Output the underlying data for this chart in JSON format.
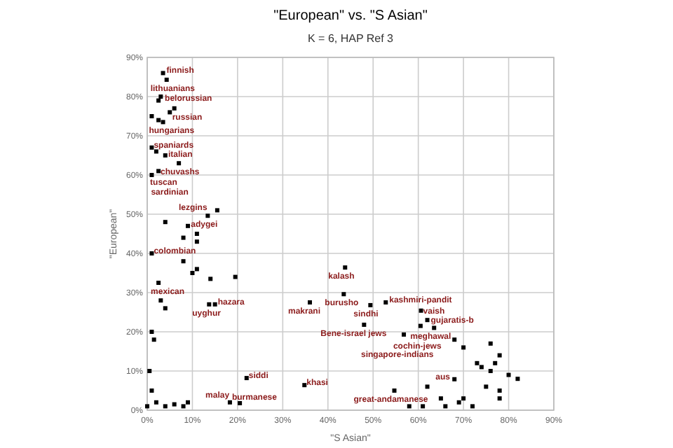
{
  "chart_data": {
    "type": "scatter",
    "title": "\"European\" vs. \"S Asian\"",
    "subtitle": "K = 6, HAP Ref 3",
    "xlabel": "\"S Asian\"",
    "ylabel": "\"European\"",
    "xlim": [
      0,
      90
    ],
    "ylim": [
      0,
      90
    ],
    "xticks": [
      {
        "value": 0,
        "label": "0%"
      },
      {
        "value": 10,
        "label": "10%"
      },
      {
        "value": 20,
        "label": "20%"
      },
      {
        "value": 30,
        "label": "30%"
      },
      {
        "value": 40,
        "label": "40%"
      },
      {
        "value": 50,
        "label": "50%"
      },
      {
        "value": 60,
        "label": "60%"
      },
      {
        "value": 70,
        "label": "70%"
      },
      {
        "value": 80,
        "label": "80%"
      },
      {
        "value": 90,
        "label": "90%"
      }
    ],
    "yticks": [
      {
        "value": 0,
        "label": "0%"
      },
      {
        "value": 10,
        "label": "10%"
      },
      {
        "value": 20,
        "label": "20%"
      },
      {
        "value": 30,
        "label": "30%"
      },
      {
        "value": 40,
        "label": "40%"
      },
      {
        "value": 50,
        "label": "50%"
      },
      {
        "value": 60,
        "label": "60%"
      },
      {
        "value": 70,
        "label": "70%"
      },
      {
        "value": 80,
        "label": "80%"
      },
      {
        "value": 90,
        "label": "90%"
      }
    ],
    "grid": true,
    "marker": "square",
    "series": [
      {
        "color": "#000000",
        "x": [
          3.5,
          4.3,
          2.5,
          6,
          1,
          1,
          2,
          7,
          2.5,
          1,
          15.5,
          13.4,
          1,
          2.5,
          13.7,
          15,
          22,
          18.3,
          20.5,
          34.8,
          43.8,
          43.5,
          36,
          49.4,
          52.8,
          48,
          60.6,
          62,
          63.5,
          60.5,
          56.8,
          68,
          54.7,
          3,
          5,
          2.5,
          3.5,
          4,
          11,
          11,
          9,
          4,
          8,
          8,
          11,
          14,
          19.5,
          10,
          3,
          4,
          1,
          1.5,
          0.5,
          1,
          2,
          4,
          6,
          8,
          9,
          0,
          62,
          65,
          70,
          72,
          75,
          76,
          77,
          78,
          80,
          78,
          73,
          70,
          68,
          74,
          58,
          61,
          66,
          69,
          78,
          82,
          76
        ],
        "values": [
          86,
          84.3,
          79,
          77,
          75,
          67,
          66,
          63,
          61,
          60,
          51,
          49.6,
          40,
          32.5,
          27,
          27,
          8.2,
          2,
          1.8,
          6.4,
          36.4,
          29.6,
          27.5,
          26.8,
          27.5,
          21.8,
          25.4,
          23,
          21,
          21.5,
          19.3,
          7.9,
          5,
          80,
          76,
          74,
          73.5,
          65,
          45,
          43,
          47,
          48,
          44,
          38,
          36,
          33.5,
          34,
          35,
          28,
          26,
          20,
          18,
          10,
          5,
          2,
          1,
          1.5,
          1,
          2,
          1,
          6,
          3,
          3,
          1,
          6,
          10,
          12,
          14,
          9,
          5,
          12,
          16,
          18,
          11,
          1,
          1,
          1,
          2,
          3,
          8,
          17
        ]
      }
    ],
    "annotations": [
      {
        "text": "finnish",
        "x": 3.5,
        "y": 86
      },
      {
        "text": "lithuanians",
        "x": 4.3,
        "y": 84.3
      },
      {
        "text": "belorussian",
        "x": 2.5,
        "y": 79
      },
      {
        "text": "russian",
        "x": 6,
        "y": 77
      },
      {
        "text": "hungarians",
        "x": 1,
        "y": 75
      },
      {
        "text": "spaniards",
        "x": 1,
        "y": 67
      },
      {
        "text": "italian",
        "x": 2,
        "y": 66
      },
      {
        "text": "chuvashs",
        "x": 7,
        "y": 63
      },
      {
        "text": "tuscan",
        "x": 2.5,
        "y": 61
      },
      {
        "text": "sardinian",
        "x": 1,
        "y": 60
      },
      {
        "text": "lezgins",
        "x": 15.5,
        "y": 51
      },
      {
        "text": "adygei",
        "x": 13.4,
        "y": 49.6
      },
      {
        "text": "colombian",
        "x": 1,
        "y": 40
      },
      {
        "text": "mexican",
        "x": 2.5,
        "y": 32.5
      },
      {
        "text": "uyghur",
        "x": 13.7,
        "y": 27
      },
      {
        "text": "hazara",
        "x": 15,
        "y": 27
      },
      {
        "text": "siddi",
        "x": 22,
        "y": 8.2
      },
      {
        "text": "burmanese",
        "x": 18.3,
        "y": 2
      },
      {
        "text": "malay",
        "x": 20.5,
        "y": 1.8
      },
      {
        "text": "khasi",
        "x": 34.8,
        "y": 6.4
      },
      {
        "text": "kalash",
        "x": 43.8,
        "y": 36.4
      },
      {
        "text": "burusho",
        "x": 43.5,
        "y": 29.6
      },
      {
        "text": "makrani",
        "x": 36,
        "y": 27.5
      },
      {
        "text": "sindhi",
        "x": 49.4,
        "y": 26.8
      },
      {
        "text": "kashmiri-pandit",
        "x": 52.8,
        "y": 27.5
      },
      {
        "text": "Bene-israel jews",
        "x": 48,
        "y": 21.8
      },
      {
        "text": "vaish",
        "x": 60.6,
        "y": 25.4
      },
      {
        "text": "gujaratis-b",
        "x": 62,
        "y": 23
      },
      {
        "text": "meghawal",
        "x": 63.5,
        "y": 21
      },
      {
        "text": "cochin-jews",
        "x": 60.5,
        "y": 21.5
      },
      {
        "text": "singapore-indians",
        "x": 56.8,
        "y": 19.3
      },
      {
        "text": "aus",
        "x": 68,
        "y": 7.9
      },
      {
        "text": "great-andamanese",
        "x": 54.7,
        "y": 5
      }
    ]
  }
}
